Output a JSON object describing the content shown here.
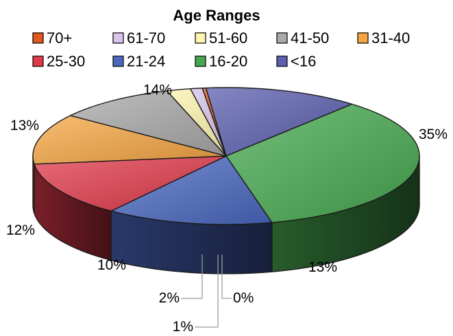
{
  "chart_data": {
    "type": "pie",
    "style": "3d",
    "title": "Age Ranges",
    "legend_position": "top",
    "slices": [
      {
        "label": "<16",
        "value": 13,
        "display": "13%",
        "color": "#5b5fae"
      },
      {
        "label": "16-20",
        "value": 35,
        "display": "35%",
        "color": "#46a84f"
      },
      {
        "label": "21-24",
        "value": 14,
        "display": "14%",
        "color": "#4a68c0"
      },
      {
        "label": "25-30",
        "value": 13,
        "display": "13%",
        "color": "#e0394a"
      },
      {
        "label": "31-40",
        "value": 12,
        "display": "12%",
        "color": "#f5a543"
      },
      {
        "label": "41-50",
        "value": 10,
        "display": "10%",
        "color": "#a9a9a9"
      },
      {
        "label": "51-60",
        "value": 2,
        "display": "2%",
        "color": "#fff6b0"
      },
      {
        "label": "61-70",
        "value": 1,
        "display": "1%",
        "color": "#d7c4e8"
      },
      {
        "label": "70+",
        "value": 0.3,
        "display": "0%",
        "color": "#e2571b"
      }
    ],
    "legend": [
      "70+",
      "61-70",
      "51-60",
      "41-50",
      "31-40",
      "25-30",
      "21-24",
      "16-20",
      "<16"
    ]
  }
}
